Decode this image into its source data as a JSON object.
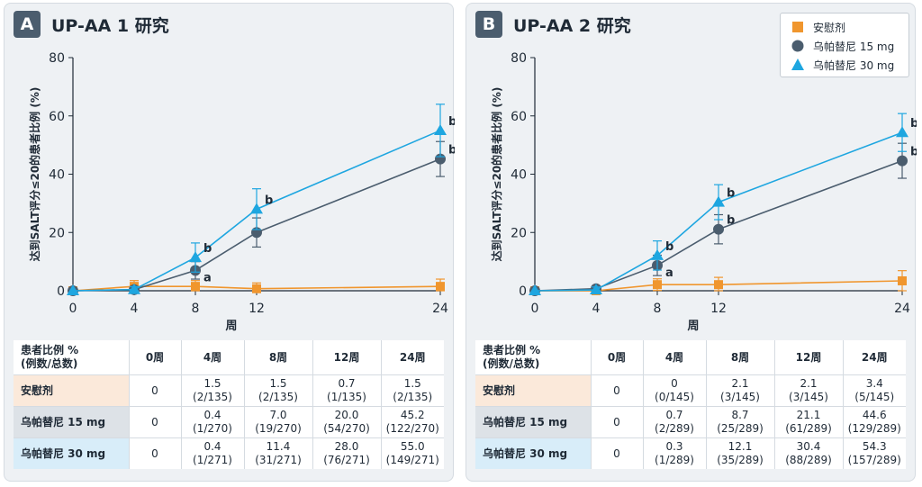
{
  "legend": [
    {
      "label": "安慰剂",
      "marker": "square",
      "color": "#f0962e"
    },
    {
      "label": "乌帕替尼 15 mg",
      "marker": "circle",
      "color": "#4b5d6e"
    },
    {
      "label": "乌帕替尼 30 mg",
      "marker": "triangle",
      "color": "#1ea6e0"
    }
  ],
  "chart_data": [
    {
      "panel_letter": "A",
      "title": "UP-AA 1 研究",
      "type": "line",
      "xlabel": "周",
      "ylabel": "达到SALT评分≤20的患者比例 (%)",
      "x": [
        0,
        4,
        8,
        12,
        24
      ],
      "xlim": [
        0,
        24
      ],
      "ylim": [
        0,
        80
      ],
      "yticks": [
        0,
        20,
        40,
        60,
        80
      ],
      "grid": false,
      "legend": "top-right",
      "series": [
        {
          "name": "安慰剂",
          "color": "#f0962e",
          "marker": "square",
          "values": [
            0,
            1.5,
            1.5,
            0.7,
            1.5
          ],
          "err": [
            0,
            2,
            2,
            2,
            2.5
          ],
          "labels": [
            "",
            "",
            "",
            "",
            ""
          ]
        },
        {
          "name": "乌帕替尼 15 mg",
          "color": "#4b5d6e",
          "marker": "circle",
          "values": [
            0,
            0.4,
            7.0,
            20.0,
            45.2
          ],
          "err": [
            0,
            1,
            3,
            5,
            6
          ],
          "labels": [
            "",
            "",
            "a",
            "",
            "b"
          ]
        },
        {
          "name": "乌帕替尼 30 mg",
          "color": "#1ea6e0",
          "marker": "triangle",
          "values": [
            0,
            0.4,
            11.4,
            28.0,
            55.0
          ],
          "err": [
            0,
            1,
            5,
            7,
            9
          ],
          "labels": [
            "",
            "",
            "b",
            "b",
            "b"
          ]
        }
      ],
      "table": {
        "header": [
          "患者比例 %\n(例数/总数)",
          "0周",
          "4周",
          "8周",
          "12周",
          "24周"
        ],
        "rows": [
          {
            "name": "安慰剂",
            "cells": [
              "0",
              "1.5\n(2/135)",
              "1.5\n(2/135)",
              "0.7\n(1/135)",
              "1.5\n(2/135)"
            ]
          },
          {
            "name": "乌帕替尼 15 mg",
            "cells": [
              "0",
              "0.4\n(1/270)",
              "7.0\n(19/270)",
              "20.0\n(54/270)",
              "45.2\n(122/270)"
            ]
          },
          {
            "name": "乌帕替尼 30 mg",
            "cells": [
              "0",
              "0.4\n(1/271)",
              "11.4\n(31/271)",
              "28.0\n(76/271)",
              "55.0\n(149/271)"
            ]
          }
        ]
      }
    },
    {
      "panel_letter": "B",
      "title": "UP-AA 2 研究",
      "type": "line",
      "xlabel": "周",
      "ylabel": "达到SALT评分≤20的患者比例 (%)",
      "x": [
        0,
        4,
        8,
        12,
        24
      ],
      "xlim": [
        0,
        24
      ],
      "ylim": [
        0,
        80
      ],
      "yticks": [
        0,
        20,
        40,
        60,
        80
      ],
      "grid": false,
      "legend": "top-right",
      "series": [
        {
          "name": "安慰剂",
          "color": "#f0962e",
          "marker": "square",
          "values": [
            0,
            0,
            2.1,
            2.1,
            3.4
          ],
          "err": [
            0,
            1,
            2,
            2.5,
            3.5
          ],
          "labels": [
            "",
            "",
            "",
            "",
            ""
          ]
        },
        {
          "name": "乌帕替尼 15 mg",
          "color": "#4b5d6e",
          "marker": "circle",
          "values": [
            0,
            0.7,
            8.7,
            21.1,
            44.6
          ],
          "err": [
            0,
            1,
            3.5,
            5,
            6
          ],
          "labels": [
            "",
            "",
            "a",
            "b",
            "b"
          ]
        },
        {
          "name": "乌帕替尼 30 mg",
          "color": "#1ea6e0",
          "marker": "triangle",
          "values": [
            0,
            0.3,
            12.1,
            30.4,
            54.3
          ],
          "err": [
            0,
            1,
            5,
            6,
            6.5
          ],
          "labels": [
            "",
            "",
            "b",
            "b",
            "b"
          ]
        }
      ],
      "table": {
        "header": [
          "患者比例 %\n(例数/总数)",
          "0周",
          "4周",
          "8周",
          "12周",
          "24周"
        ],
        "rows": [
          {
            "name": "安慰剂",
            "cells": [
              "0",
              "0\n(0/145)",
              "2.1\n(3/145)",
              "2.1\n(3/145)",
              "3.4\n(5/145)"
            ]
          },
          {
            "name": "乌帕替尼 15 mg",
            "cells": [
              "0",
              "0.7\n(2/289)",
              "8.7\n(25/289)",
              "21.1\n(61/289)",
              "44.6\n(129/289)"
            ]
          },
          {
            "name": "乌帕替尼 30 mg",
            "cells": [
              "0",
              "0.3\n(1/289)",
              "12.1\n(35/289)",
              "30.4\n(88/289)",
              "54.3\n(157/289)"
            ]
          }
        ]
      }
    }
  ]
}
